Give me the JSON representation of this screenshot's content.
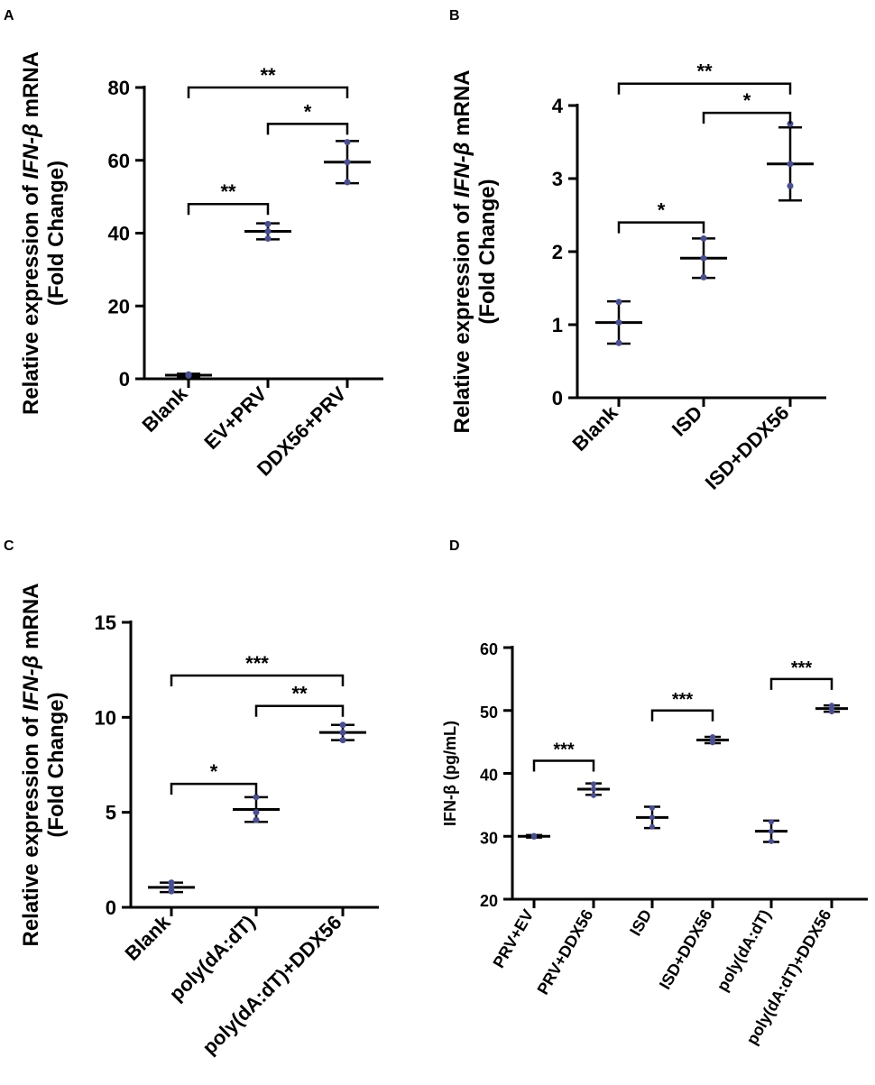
{
  "chart_data": [
    {
      "panel": "A",
      "type": "scatter",
      "title": "",
      "ylabel_parts": [
        "Relative expression of ",
        "IFN-",
        "β",
        " mRNA"
      ],
      "ylabel_line2": "(Fold Change)",
      "ylim": [
        0,
        80
      ],
      "yticks": [
        "0",
        "20",
        "40",
        "60",
        "80"
      ],
      "yticks_values": [
        0,
        20,
        40,
        60,
        80
      ],
      "categories": [
        "Blank",
        "EV+PRV",
        "DDX56+PRV"
      ],
      "means": [
        1,
        40.5,
        59.5
      ],
      "sd": [
        0.4,
        2.2,
        5.8
      ],
      "points": [
        [
          0.9,
          1.2,
          1.0
        ],
        [
          38.5,
          40.5,
          42.5
        ],
        [
          54,
          59.5,
          65
        ]
      ],
      "comparisons": [
        {
          "from": 1,
          "to": 2,
          "y": 48,
          "label": "**"
        },
        {
          "from": 2,
          "to": 3,
          "y": 70,
          "label": "*"
        },
        {
          "from": 1,
          "to": 3,
          "y": 80,
          "label": "**"
        }
      ]
    },
    {
      "panel": "B",
      "type": "scatter",
      "title": "",
      "ylabel_parts": [
        "Relative expression of ",
        "IFN-",
        "β",
        " mRNA"
      ],
      "ylabel_line2": "(Fold Change)",
      "ylim": [
        0,
        4
      ],
      "yticks": [
        "0",
        "1",
        "2",
        "3",
        "4"
      ],
      "yticks_values": [
        0,
        1,
        2,
        3,
        4
      ],
      "categories": [
        "Blank",
        "ISD",
        "ISD+DDX56"
      ],
      "means": [
        1.03,
        1.91,
        3.2
      ],
      "sd": [
        0.29,
        0.27,
        0.5
      ],
      "points": [
        [
          0.75,
          1.03,
          1.31
        ],
        [
          1.65,
          1.91,
          2.18
        ],
        [
          2.9,
          3.2,
          3.75
        ]
      ],
      "comparisons": [
        {
          "from": 1,
          "to": 2,
          "y": 2.4,
          "label": "*"
        },
        {
          "from": 2,
          "to": 3,
          "y": 3.9,
          "label": "*"
        },
        {
          "from": 1,
          "to": 3,
          "y": 4.3,
          "label": "**"
        }
      ]
    },
    {
      "panel": "C",
      "type": "scatter",
      "title": "",
      "ylabel_parts": [
        "Relative expression of ",
        "IFN-",
        "β",
        " mRNA"
      ],
      "ylabel_line2": "(Fold Change)",
      "ylim": [
        0,
        15
      ],
      "yticks": [
        "0",
        "5",
        "10",
        "15"
      ],
      "yticks_values": [
        0,
        5,
        10,
        15
      ],
      "categories": [
        "Blank",
        "poly(dA:dT)",
        "poly(dA:dT)+DDX56"
      ],
      "means": [
        1.05,
        5.15,
        9.2
      ],
      "sd": [
        0.25,
        0.65,
        0.4
      ],
      "points": [
        [
          0.85,
          1.05,
          1.3
        ],
        [
          4.6,
          5.0,
          5.8
        ],
        [
          8.8,
          9.2,
          9.6
        ]
      ],
      "comparisons": [
        {
          "from": 1,
          "to": 2,
          "y": 6.5,
          "label": "*"
        },
        {
          "from": 2,
          "to": 3,
          "y": 10.6,
          "label": "**"
        },
        {
          "from": 1,
          "to": 3,
          "y": 12.2,
          "label": "***"
        }
      ]
    },
    {
      "panel": "D",
      "type": "scatter",
      "title": "",
      "ylabel_parts": [
        "IFN-β (pg/mL)"
      ],
      "ylabel_line2": "",
      "ylim": [
        20,
        60
      ],
      "yticks": [
        "20",
        "30",
        "40",
        "50",
        "60"
      ],
      "yticks_values": [
        20,
        30,
        40,
        50,
        60
      ],
      "categories": [
        "PRV+EV",
        "PRV+DDX56",
        "ISD",
        "ISD+DDX56",
        "poly(dA:dT)",
        "poly(dA:dT)+DDX56"
      ],
      "means": [
        30.0,
        37.5,
        33.0,
        45.3,
        30.8,
        50.3
      ],
      "sd": [
        0.2,
        0.9,
        1.7,
        0.5,
        1.7,
        0.5
      ],
      "points": [
        [
          29.9,
          30.0,
          30.1
        ],
        [
          36.5,
          37.5,
          38.3
        ],
        [
          31.5,
          33.0,
          34.5
        ],
        [
          44.9,
          45.3,
          45.8
        ],
        [
          29.2,
          30.8,
          32.3
        ],
        [
          49.8,
          50.3,
          50.8
        ]
      ],
      "comparisons": [
        {
          "from": 1,
          "to": 2,
          "y": 42,
          "label": "***"
        },
        {
          "from": 3,
          "to": 4,
          "y": 50,
          "label": "***"
        },
        {
          "from": 5,
          "to": 6,
          "y": 55,
          "label": "***"
        }
      ]
    }
  ],
  "panel_letters": [
    "A",
    "B",
    "C",
    "D"
  ],
  "colors": {
    "points": "#4a4f8f",
    "lines": "#000000"
  }
}
